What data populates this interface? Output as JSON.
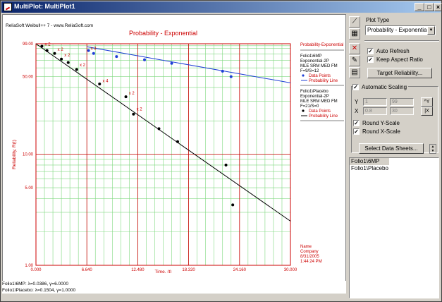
{
  "window": {
    "title": "MultiPlot: MultiPlot1"
  },
  "plot": {
    "header_left": "ReliaSoft Weibull++ 7 - www.ReliaSoft.com",
    "title": "Probability - Exponential",
    "ylabel": "Reliability, R(t)",
    "xlabel": "Time, (t)",
    "legend": {
      "title": "Probability-Exponential",
      "folio1": {
        "name": "Folio1\\6MP",
        "model": "Exponential-2P",
        "method": "MLE SRM MED FM",
        "counts": "F=9/S=12",
        "points": "Data Points",
        "line": "Probability Line"
      },
      "folio2": {
        "name": "Folio1\\Placebo",
        "model": "Exponential-2P",
        "method": "MLE SRM MED FM",
        "counts": "F=21/S=0",
        "points": "Data Points",
        "line": "Probability Line"
      }
    },
    "footer": {
      "name": "Name",
      "company": "Company",
      "date": "8/31/2005",
      "time": "1:44:24 PM"
    },
    "status": [
      "Folio1\\6MP: λ=0.0386, γ=6.0000",
      "Folio1\\Placebo: λ=0.1504, γ=1.0000"
    ],
    "colors": {
      "folio1": "#1f3fd6",
      "folio2": "#000000",
      "grid_major": "#cc0000",
      "grid_minor": "#7ed87e"
    }
  },
  "chart_data": {
    "type": "scatter",
    "title": "Probability - Exponential",
    "xlabel": "Time, (t)",
    "ylabel": "Reliability, R(t)",
    "xlim": [
      0,
      30
    ],
    "ylim": [
      1,
      99
    ],
    "yscale": "log",
    "x_ticks": [
      "0.000",
      "6.640",
      "12.480",
      "18.320",
      "24.160",
      "30.000"
    ],
    "y_ticks": [
      "99.00",
      "50.00",
      "10.00",
      "5.00",
      "1.00"
    ],
    "series": [
      {
        "name": "Folio1\\6MP",
        "color": "#1f3fd6",
        "points": [
          [
            6.2,
            86
          ],
          [
            6.8,
            81
          ],
          [
            9.5,
            76
          ],
          [
            12.8,
            71
          ],
          [
            16,
            66
          ],
          [
            22,
            56
          ],
          [
            23,
            50
          ]
        ],
        "labels": [
          {
            "x": 6.2,
            "y": 86,
            "text": "x 3"
          }
        ],
        "line": [
          [
            6.0,
            93
          ],
          [
            30,
            44
          ]
        ]
      },
      {
        "name": "Folio1\\Placebo",
        "color": "#000000",
        "points": [
          [
            0.7,
            94
          ],
          [
            1.3,
            86
          ],
          [
            2.2,
            81
          ],
          [
            3.0,
            72
          ],
          [
            3.8,
            67
          ],
          [
            4.8,
            58
          ],
          [
            7.5,
            43
          ],
          [
            10.6,
            33
          ],
          [
            11.5,
            23
          ],
          [
            14.5,
            17
          ],
          [
            16.7,
            13
          ],
          [
            22.4,
            8
          ],
          [
            23.2,
            3.5
          ]
        ],
        "labels": [
          {
            "x": 0.8,
            "y": 94,
            "text": "x 2"
          },
          {
            "x": 2.3,
            "y": 84,
            "text": "x 2"
          },
          {
            "x": 3.1,
            "y": 75,
            "text": "x 2"
          },
          {
            "x": 4.9,
            "y": 61,
            "text": "x 2"
          },
          {
            "x": 7.6,
            "y": 44,
            "text": "x 4"
          },
          {
            "x": 10.7,
            "y": 34,
            "text": "x 2"
          },
          {
            "x": 11.6,
            "y": 24.5,
            "text": "x 2"
          }
        ],
        "line": [
          [
            0,
            99
          ],
          [
            30,
            2.5
          ]
        ]
      }
    ]
  },
  "panel": {
    "plot_type_label": "Plot Type",
    "plot_type_value": "Probability - Exponential",
    "auto_refresh": "Auto Refresh",
    "keep_aspect": "Keep Aspect Ratio",
    "target_reliability": "Target Reliability...",
    "automatic_scaling": "Automatic Scaling",
    "y_label": "Y",
    "x_label": "X",
    "y_min": "1",
    "y_max": "99",
    "x_min": "0.8",
    "x_max": "30",
    "y_scale_btn": "^Y",
    "x_scale_btn": "|X",
    "round_y": "Round Y-Scale",
    "round_x": "Round X-Scale",
    "select_sheets": "Select Data Sheets...",
    "sheets": [
      "Folio1\\6MP",
      "Folio1\\Placebo"
    ]
  }
}
